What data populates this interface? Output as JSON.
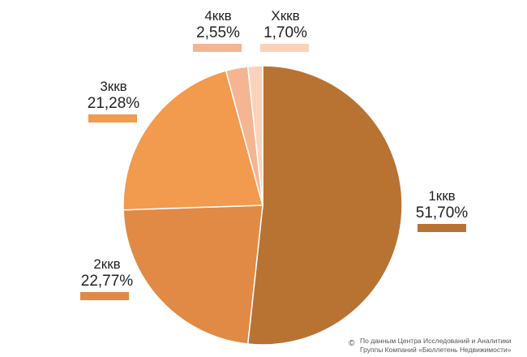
{
  "chart_data": {
    "type": "pie",
    "title": "",
    "slices": [
      {
        "label": "1ккв",
        "value": 51.7,
        "value_text": "51,70%",
        "color": "#B87333"
      },
      {
        "label": "2ккв",
        "value": 22.77,
        "value_text": "22,77%",
        "color": "#E08A45"
      },
      {
        "label": "3ккв",
        "value": 21.28,
        "value_text": "21,28%",
        "color": "#F29A4E"
      },
      {
        "label": "4ккв",
        "value": 2.55,
        "value_text": "2,55%",
        "color": "#F5B592"
      },
      {
        "label": "Xккв",
        "value": 1.7,
        "value_text": "1,70%",
        "color": "#FAD2BC"
      }
    ],
    "legend": "labels-around-pie"
  },
  "footnote": {
    "copyright": "©",
    "line1": "По данным Центра Исследований и Аналитики",
    "line2": "Группы Компаний «Бюллетень Недвижимости»"
  }
}
